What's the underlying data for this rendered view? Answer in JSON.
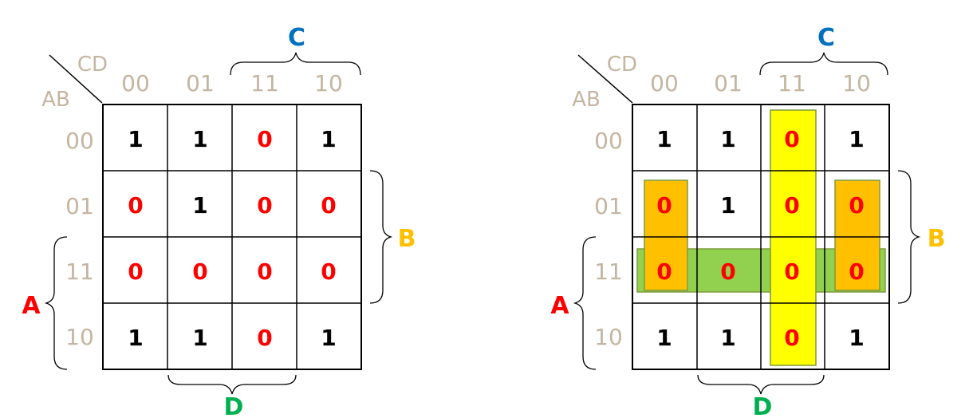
{
  "colors": {
    "zero": "#ff0000",
    "one": "#000000",
    "header": "#c4b5a0",
    "label_A": "#ff0000",
    "label_B": "#ffc000",
    "label_C": "#0070c0",
    "label_D": "#00b050",
    "yellow_group": "#ffff00",
    "green_group": "#92d050",
    "orange_group": "#ffc000",
    "group_border": "#7f9a3c"
  },
  "kmap": {
    "corner_cd": "CD",
    "corner_ab": "AB",
    "col_headers": [
      "00",
      "01",
      "11",
      "10"
    ],
    "row_headers": [
      "00",
      "01",
      "11",
      "10"
    ],
    "label_A": "A",
    "label_B": "B",
    "label_C": "C",
    "label_D": "D",
    "cells": [
      [
        "1",
        "1",
        "0",
        "1"
      ],
      [
        "0",
        "1",
        "0",
        "0"
      ],
      [
        "0",
        "0",
        "0",
        "0"
      ],
      [
        "1",
        "1",
        "0",
        "1"
      ]
    ]
  },
  "groupings": {
    "yellow_column": "11",
    "green_row": "11",
    "orange_column_left": "00",
    "orange_column_right": "10",
    "orange_rows": [
      "01",
      "11"
    ]
  }
}
